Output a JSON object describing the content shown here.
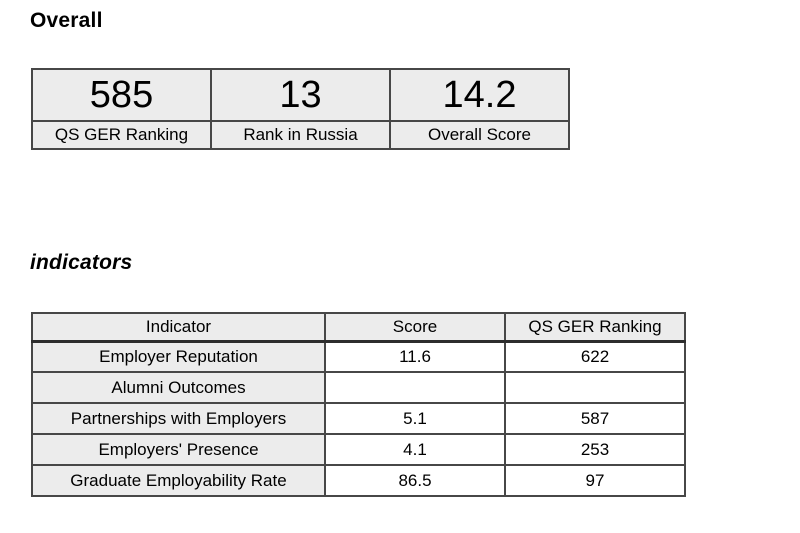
{
  "headings": {
    "overall": "Overall",
    "indicators": "indicators"
  },
  "overall_table": {
    "cards": [
      {
        "value": "585",
        "label": "QS GER Ranking"
      },
      {
        "value": "13",
        "label": "Rank in Russia"
      },
      {
        "value": "14.2",
        "label": "Overall Score"
      }
    ]
  },
  "indicators_table": {
    "headers": {
      "indicator": "Indicator",
      "score": "Score",
      "ranking": "QS GER Ranking"
    },
    "rows": [
      {
        "indicator": "Employer Reputation",
        "score": "11.6",
        "ranking": "622"
      },
      {
        "indicator": "Alumni Outcomes",
        "score": "",
        "ranking": ""
      },
      {
        "indicator": "Partnerships with Employers",
        "score": "5.1",
        "ranking": "587"
      },
      {
        "indicator": "Employers' Presence",
        "score": "4.1",
        "ranking": "253"
      },
      {
        "indicator": "Graduate Employability Rate",
        "score": "86.5",
        "ranking": "97"
      }
    ]
  },
  "colors": {
    "cell_background": "#ececec",
    "data_cell_background": "#ffffff",
    "border": "#474747",
    "text": "#000000",
    "page_background": "#ffffff"
  }
}
